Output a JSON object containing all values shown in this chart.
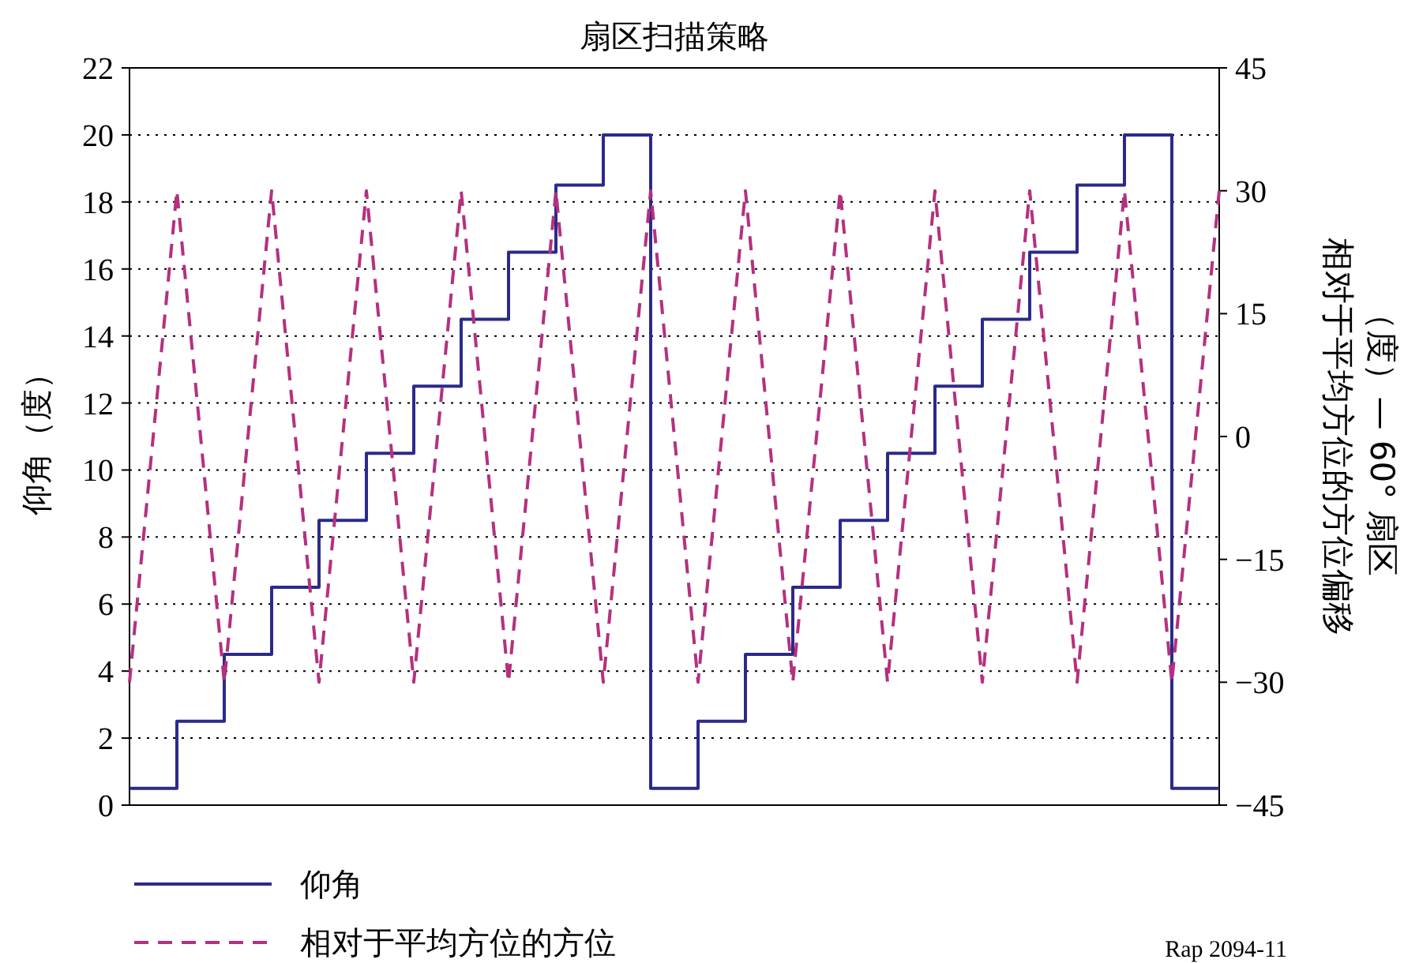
{
  "chart_data": {
    "type": "step",
    "title": "扇区扫描策略",
    "ylabel": "仰角（度）",
    "y2label": "相对于平均方位的方位偏移（度）— 60° 扇区",
    "categories": [
      null,
      null,
      null,
      null,
      null,
      null,
      null,
      null,
      null,
      null,
      null,
      null,
      null,
      null,
      null,
      null,
      null,
      null,
      null,
      null,
      null,
      null,
      null,
      null
    ],
    "ylim": [
      0,
      22
    ],
    "yticks": [
      0,
      2,
      4,
      6,
      8,
      10,
      12,
      14,
      16,
      18,
      20,
      22
    ],
    "y2lim": [
      -45,
      45
    ],
    "y2ticks": [
      -45,
      -30,
      -15,
      0,
      15,
      30,
      45
    ],
    "tick_labels": "y",
    "grid": "y",
    "legend": "bottom",
    "marker": "none",
    "series": [
      {
        "name": "仰角",
        "color": "#2b2a8a",
        "line_style": "solid",
        "values": [
          0.5,
          2.5,
          4.5,
          6.5,
          8.5,
          10.5,
          12.5,
          14.5,
          16.5,
          18.5,
          20,
          0.5,
          2.5,
          4.5,
          6.5,
          8.5,
          10.5,
          12.5,
          14.5,
          16.5,
          18.5,
          20,
          0.5,
          0.5
        ]
      },
      {
        "name": "相对于平均方位的方位",
        "type": "line",
        "axis": "y2",
        "color": "#b5307f",
        "line_style": "dashed",
        "values": [
          -30,
          30,
          -30,
          30,
          -30,
          30,
          -30,
          30,
          -30,
          30,
          -30,
          30,
          -30,
          30,
          -30,
          30,
          -30,
          30,
          -30,
          30,
          -30,
          30,
          -30,
          30
        ]
      }
    ],
    "annotations": [
      "Rap 2094-11"
    ]
  }
}
